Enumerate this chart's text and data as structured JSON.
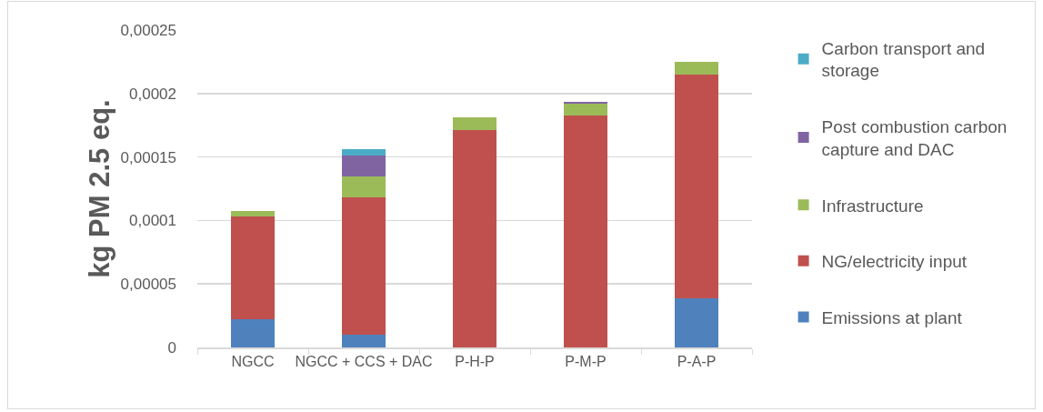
{
  "chart_data": {
    "type": "bar",
    "ylabel": "kg PM 2.5 eq.",
    "categories": [
      "NGCC",
      "NGCC + CCS + DAC",
      "P-H-P",
      "P-M-P",
      "P-A-P"
    ],
    "series": [
      {
        "name": "Emissions at plant",
        "color": "#4f81bd",
        "values": [
          2.2e-05,
          1e-05,
          0,
          0,
          3.9e-05
        ]
      },
      {
        "name": "NG/electricity input",
        "color": "#c0504d",
        "values": [
          8.1e-05,
          0.000108,
          0.000171,
          0.000183,
          0.000176
        ]
      },
      {
        "name": "Infrastructure",
        "color": "#9bbb59",
        "values": [
          4.4e-06,
          1.7e-05,
          1.05e-05,
          9.3e-06,
          9.6e-06
        ]
      },
      {
        "name": "Post combustion carbon capture and DAC",
        "color": "#8064a2",
        "values": [
          0,
          1.64e-05,
          0,
          1.2e-06,
          0
        ]
      },
      {
        "name": "Carbon transport and storage",
        "color": "#4bacc6",
        "values": [
          0,
          5.1e-06,
          0,
          0,
          0
        ]
      }
    ],
    "stacked": true,
    "ylim": [
      0,
      0.00025
    ],
    "yticks": [
      0,
      {
        "value": 5e-05,
        "label": "0,00005"
      },
      {
        "value": 0.0001,
        "label": "0,0001"
      },
      {
        "value": 0.00015,
        "label": "0,00015"
      },
      {
        "value": 0.0002,
        "label": "0,0002"
      },
      {
        "value": 0.00025,
        "label": "0,00025"
      }
    ],
    "grid": "y",
    "legend": "right"
  }
}
